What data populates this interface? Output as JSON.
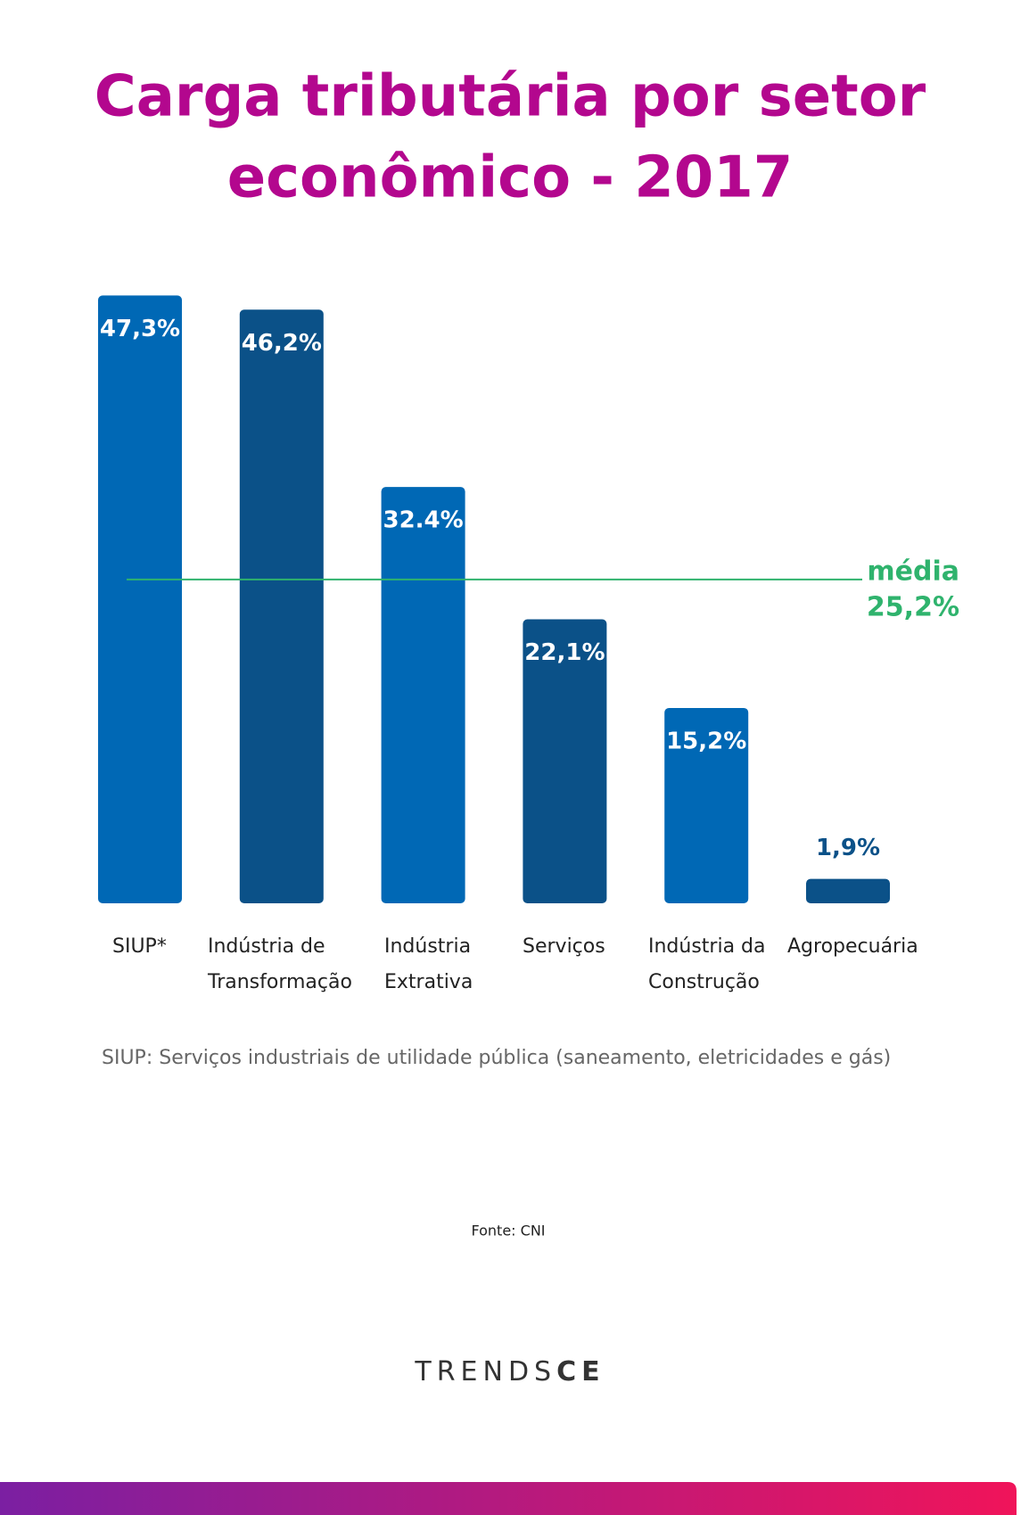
{
  "chart_data": {
    "type": "bar",
    "title": [
      "Carga tributária por setor",
      "econômico - 2017"
    ],
    "categories": [
      "SIUP*",
      "Indústria de Transformação",
      "Indústria Extrativa",
      "Serviços",
      "Indústria da Construção",
      "Agropecuária"
    ],
    "values": [
      47.3,
      46.2,
      32.4,
      22.1,
      15.2,
      1.9
    ],
    "value_labels": [
      "47,3%",
      "46,2%",
      "32.4%",
      "22,1%",
      "15,2%",
      "1,9%"
    ],
    "colors": [
      "#0068b5",
      "#0b5188",
      "#0068b5",
      "#0b5188",
      "#0068b5",
      "#0b5188"
    ],
    "average": {
      "label": "média",
      "value": 25.2,
      "value_label": "25,2%",
      "color": "#2fb36d"
    },
    "note": "SIUP: Serviços industriais de utilidade pública (saneamento, eletricidades e gás)",
    "source": "Fonte: CNI"
  },
  "logo": {
    "part1": "TRENDS",
    "part2": "CE"
  }
}
